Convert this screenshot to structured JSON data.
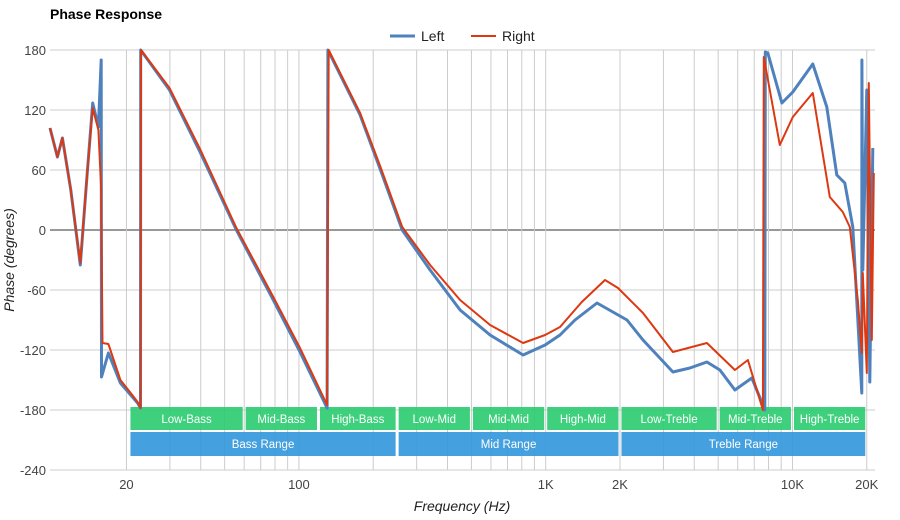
{
  "chart_data": {
    "type": "line",
    "title": "Phase Response",
    "xlabel": "Frequency (Hz)",
    "ylabel": "Phase (degrees)",
    "x_scale": "log",
    "xlim": [
      9.8,
      21600
    ],
    "ylim": [
      -240,
      180
    ],
    "grid": true,
    "legend_position": "top-center",
    "x_ticks": [
      {
        "value": 20,
        "label": "20"
      },
      {
        "value": 100,
        "label": "100"
      },
      {
        "value": 1000,
        "label": "1K"
      },
      {
        "value": 2000,
        "label": "2K"
      },
      {
        "value": 10000,
        "label": "10K"
      },
      {
        "value": 20000,
        "label": "20K"
      }
    ],
    "x_gridlines": [
      20,
      30,
      40,
      50,
      60,
      70,
      80,
      90,
      100,
      200,
      300,
      400,
      500,
      600,
      700,
      800,
      900,
      1000,
      2000,
      3000,
      4000,
      5000,
      6000,
      7000,
      8000,
      9000,
      10000,
      20000
    ],
    "y_ticks": [
      180,
      120,
      60,
      0,
      -60,
      -120,
      -180,
      -240
    ],
    "series": [
      {
        "name": "Left",
        "color": "#4f81bd",
        "points": [
          [
            9.8,
            102
          ],
          [
            10.5,
            73
          ],
          [
            11.0,
            92
          ],
          [
            11.9,
            40
          ],
          [
            13.0,
            -35
          ],
          [
            13.8,
            50
          ],
          [
            14.6,
            127
          ],
          [
            15.4,
            103
          ],
          [
            15.8,
            170
          ],
          [
            15.85,
            -147
          ],
          [
            16.9,
            -123
          ],
          [
            18.9,
            -153
          ],
          [
            20.8,
            -165
          ],
          [
            22.2,
            -173
          ],
          [
            22.8,
            -178
          ],
          [
            22.85,
            180
          ],
          [
            29.9,
            140
          ],
          [
            39.9,
            77
          ],
          [
            55.8,
            0
          ],
          [
            78.7,
            -70
          ],
          [
            101,
            -122
          ],
          [
            130,
            -178
          ],
          [
            131,
            180
          ],
          [
            177,
            115
          ],
          [
            214,
            60
          ],
          [
            262,
            0
          ],
          [
            340,
            -40
          ],
          [
            450,
            -80
          ],
          [
            595,
            -105
          ],
          [
            810,
            -125
          ],
          [
            994,
            -115
          ],
          [
            1143,
            -105
          ],
          [
            1315,
            -90
          ],
          [
            1614,
            -73
          ],
          [
            2135,
            -90
          ],
          [
            2478,
            -110
          ],
          [
            3278,
            -142
          ],
          [
            3840,
            -138
          ],
          [
            4500,
            -132
          ],
          [
            5080,
            -140
          ],
          [
            5844,
            -160
          ],
          [
            6845,
            -148
          ],
          [
            7587,
            -175
          ],
          [
            7727,
            -180
          ],
          [
            7760,
            178
          ],
          [
            7947,
            177
          ],
          [
            9060,
            127
          ],
          [
            10030,
            138
          ],
          [
            12090,
            166
          ],
          [
            13780,
            123
          ],
          [
            15120,
            55
          ],
          [
            16290,
            47
          ],
          [
            17560,
            3
          ],
          [
            19090,
            -163
          ],
          [
            19120,
            170
          ],
          [
            19280,
            -40
          ],
          [
            20010,
            140
          ],
          [
            20580,
            -152
          ],
          [
            21170,
            82
          ]
        ]
      },
      {
        "name": "Right",
        "color": "#dc3912",
        "points": [
          [
            9.8,
            102
          ],
          [
            10.5,
            73
          ],
          [
            11.0,
            92
          ],
          [
            11.9,
            40
          ],
          [
            13.0,
            -33
          ],
          [
            13.8,
            50
          ],
          [
            14.6,
            122
          ],
          [
            15.4,
            100
          ],
          [
            15.8,
            40
          ],
          [
            16.0,
            -113
          ],
          [
            16.9,
            -114
          ],
          [
            18.9,
            -150
          ],
          [
            20.8,
            -163
          ],
          [
            22.2,
            -172
          ],
          [
            22.8,
            -178
          ],
          [
            22.9,
            180
          ],
          [
            29.9,
            142
          ],
          [
            39.9,
            80
          ],
          [
            55.8,
            2
          ],
          [
            78.7,
            -67
          ],
          [
            101,
            -118
          ],
          [
            130,
            -175
          ],
          [
            132,
            180
          ],
          [
            177,
            117
          ],
          [
            214,
            63
          ],
          [
            262,
            3
          ],
          [
            340,
            -35
          ],
          [
            450,
            -70
          ],
          [
            595,
            -95
          ],
          [
            810,
            -113
          ],
          [
            994,
            -105
          ],
          [
            1143,
            -97
          ],
          [
            1400,
            -72
          ],
          [
            1739,
            -50
          ],
          [
            1963,
            -58
          ],
          [
            2478,
            -83
          ],
          [
            3278,
            -122
          ],
          [
            4500,
            -113
          ],
          [
            5844,
            -140
          ],
          [
            6596,
            -130
          ],
          [
            7587,
            -180
          ],
          [
            7650,
            173
          ],
          [
            8888,
            85
          ],
          [
            10030,
            113
          ],
          [
            12090,
            137
          ],
          [
            14170,
            33
          ],
          [
            15990,
            18
          ],
          [
            17070,
            3
          ],
          [
            18400,
            -70
          ],
          [
            19090,
            -123
          ],
          [
            19280,
            -43
          ],
          [
            20010,
            -143
          ],
          [
            20390,
            147
          ],
          [
            20970,
            -110
          ],
          [
            21360,
            57
          ]
        ]
      }
    ],
    "bands": [
      {
        "label": "Low-Bass",
        "range": [
          20,
          60
        ]
      },
      {
        "label": "Mid-Bass",
        "range": [
          60,
          120
        ]
      },
      {
        "label": "High-Bass",
        "range": [
          120,
          250
        ]
      },
      {
        "label": "Low-Mid",
        "range": [
          250,
          500
        ]
      },
      {
        "label": "Mid-Mid",
        "range": [
          500,
          1000
        ]
      },
      {
        "label": "High-Mid",
        "range": [
          1000,
          2000
        ]
      },
      {
        "label": "Low-Treble",
        "range": [
          2000,
          5000
        ]
      },
      {
        "label": "Mid-Treble",
        "range": [
          5000,
          10000
        ]
      },
      {
        "label": "High-Treble",
        "range": [
          10000,
          20000
        ]
      }
    ],
    "ranges": [
      {
        "label": "Bass Range",
        "range": [
          20,
          250
        ]
      },
      {
        "label": "Mid Range",
        "range": [
          250,
          2000
        ]
      },
      {
        "label": "Treble Range",
        "range": [
          2000,
          20000
        ]
      }
    ],
    "band_color": "#2ecc71",
    "range_color": "#3498db"
  }
}
